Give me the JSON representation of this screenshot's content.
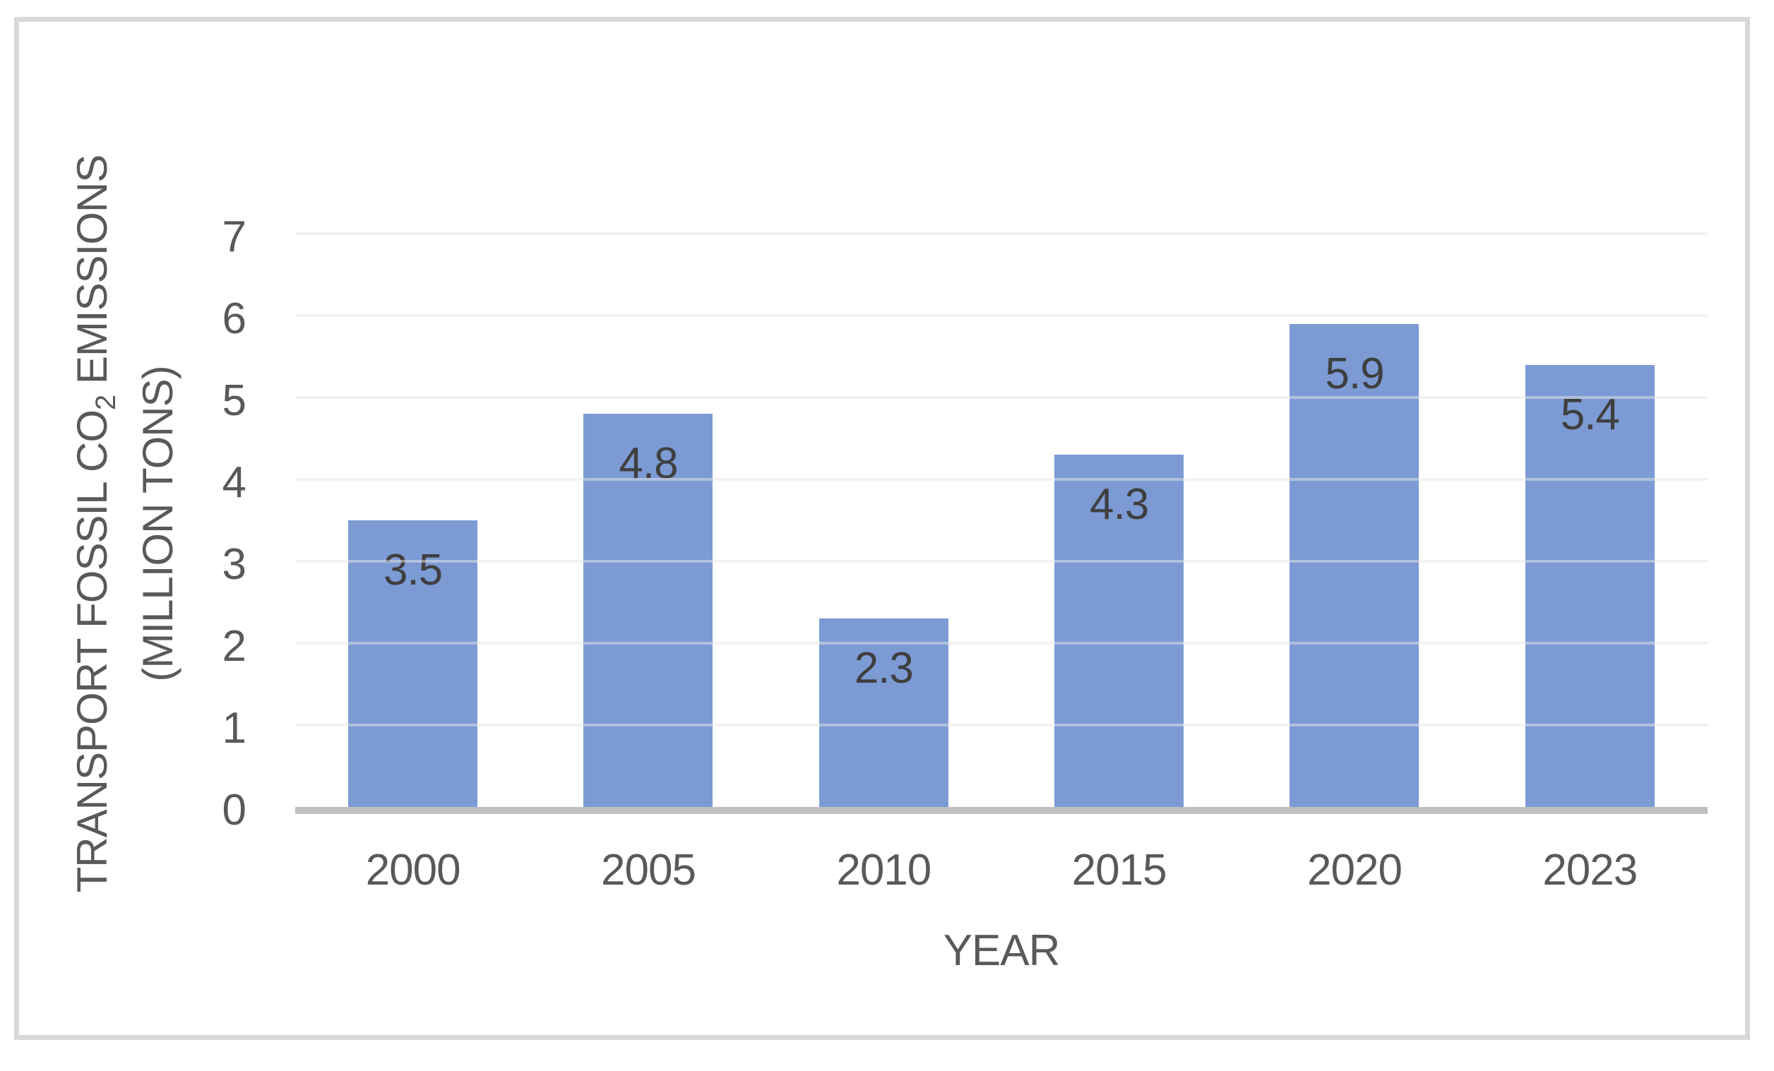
{
  "chart_data": {
    "type": "bar",
    "categories": [
      "2000",
      "2005",
      "2010",
      "2015",
      "2020",
      "2023"
    ],
    "values": [
      3.5,
      4.8,
      2.3,
      4.3,
      5.9,
      5.4
    ],
    "bar_labels": [
      "3.5",
      "4.8",
      "2.3",
      "4.3",
      "5.9",
      "5.4"
    ],
    "xlabel": "YEAR",
    "ylabel_line1_prefix": "TRANSPORT FOSSIL CO",
    "ylabel_subscript": "2",
    "ylabel_line1_suffix": " EMISSIONS",
    "ylabel_line2": "(MILLION TONS)",
    "y_ticks": [
      "0",
      "1",
      "2",
      "3",
      "4",
      "5",
      "6",
      "7"
    ],
    "ylim": [
      0,
      7
    ],
    "grid": true,
    "legend": "none",
    "colors": {
      "bar": "#7C9BD4",
      "bar_label_text": "#3F3F3F",
      "axis_text": "#595959",
      "gridline": "rgba(230,230,230,0.5)",
      "axis_line": "#BFBFBF",
      "frame_border": "#D9D9D9",
      "background": "#FFFFFF"
    }
  }
}
